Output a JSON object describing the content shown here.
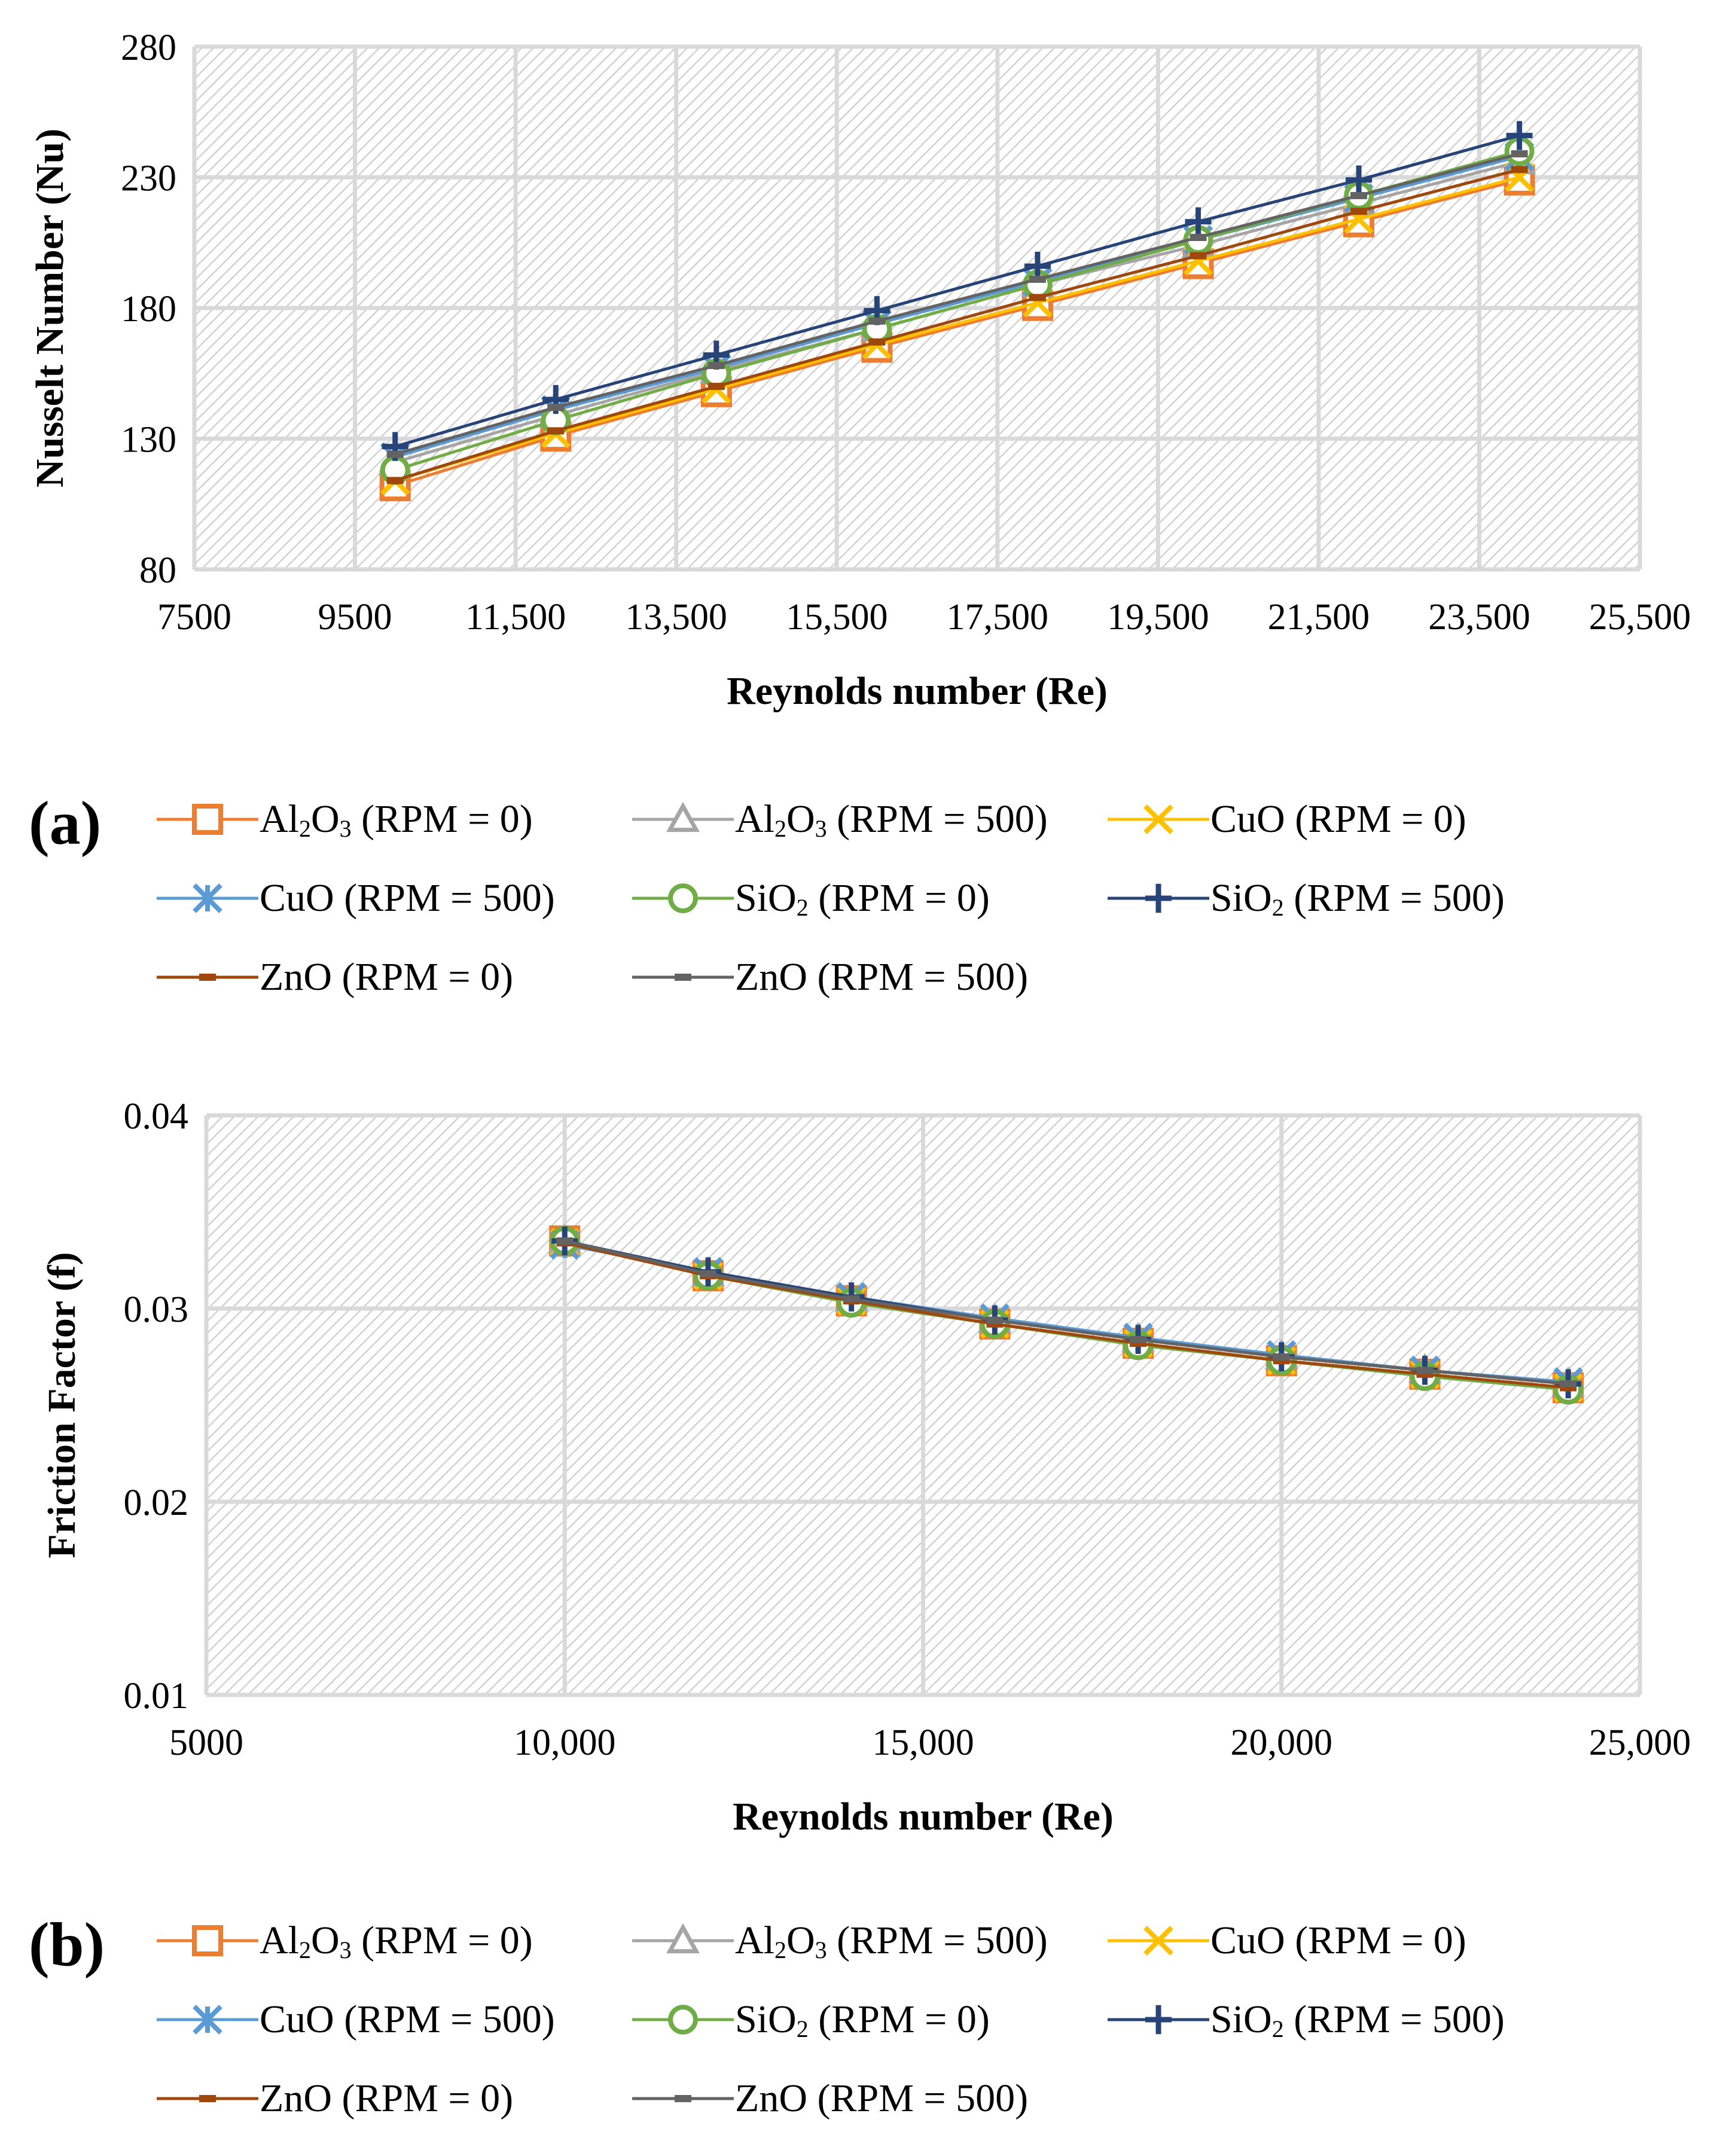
{
  "chart_data": [
    {
      "panel": "(a)",
      "type": "line",
      "xlabel": "Reynolds number (Re)",
      "ylabel": "Nusselt Number (Nu)",
      "xlim": [
        7500,
        25500
      ],
      "ylim": [
        80,
        280
      ],
      "xticks": [
        7500,
        9500,
        11500,
        13500,
        15500,
        17500,
        19500,
        21500,
        23500,
        25500
      ],
      "xtick_labels": [
        "7500",
        "9500",
        "11,500",
        "13,500",
        "15,500",
        "17,500",
        "19,500",
        "21,500",
        "23,500",
        "25,500"
      ],
      "yticks": [
        80,
        130,
        180,
        230,
        280
      ],
      "ytick_labels": [
        "80",
        "130",
        "180",
        "230",
        "280"
      ],
      "grid": true,
      "x": [
        10000,
        12000,
        14000,
        16000,
        18000,
        20000,
        22000,
        24000
      ],
      "series": [
        {
          "name": "Al2O3 (RPM = 0)",
          "marker": "square",
          "color": "#ED7D31",
          "values": [
            112,
            131,
            148,
            165,
            181,
            197,
            213,
            229
          ]
        },
        {
          "name": "Al2O3 (RPM = 500)",
          "marker": "triangle",
          "color": "#A5A5A5",
          "values": [
            121,
            139,
            156,
            172,
            189,
            204,
            220,
            236
          ]
        },
        {
          "name": "CuO (RPM = 0)",
          "marker": "x",
          "color": "#FFC000",
          "values": [
            114,
            132,
            149,
            166,
            182,
            198,
            214,
            230
          ]
        },
        {
          "name": "CuO (RPM = 500)",
          "marker": "star",
          "color": "#5B9BD5",
          "values": [
            123,
            141,
            157,
            174,
            190,
            206,
            222,
            238
          ]
        },
        {
          "name": "SiO2 (RPM = 0)",
          "marker": "circle",
          "color": "#70AD47",
          "values": [
            118,
            137,
            155,
            172,
            189,
            206,
            223,
            240
          ]
        },
        {
          "name": "SiO2 (RPM = 500)",
          "marker": "plus",
          "color": "#264478",
          "values": [
            127,
            145,
            162,
            179,
            196,
            213,
            229,
            246
          ]
        },
        {
          "name": "ZnO (RPM = 0)",
          "marker": "dash",
          "color": "#9E480E",
          "values": [
            114,
            133,
            150,
            167,
            184,
            200,
            217,
            233
          ]
        },
        {
          "name": "ZnO (RPM = 500)",
          "marker": "dash",
          "color": "#636363",
          "values": [
            124,
            142,
            158,
            175,
            191,
            207,
            223,
            239
          ]
        }
      ]
    },
    {
      "panel": "(b)",
      "type": "line",
      "xlabel": "Reynolds number (Re)",
      "ylabel": "Friction Factor (f)",
      "xlim": [
        5000,
        25000
      ],
      "ylim": [
        0.01,
        0.04
      ],
      "xticks": [
        5000,
        10000,
        15000,
        20000,
        25000
      ],
      "xtick_labels": [
        "5000",
        "10,000",
        "15,000",
        "20,000",
        "25,000"
      ],
      "yticks": [
        0.01,
        0.02,
        0.03,
        0.04
      ],
      "ytick_labels": [
        "0.01",
        "0.02",
        "0.03",
        "0.04"
      ],
      "grid": true,
      "x": [
        10000,
        12000,
        14000,
        16000,
        18000,
        20000,
        22000,
        24000
      ],
      "series": [
        {
          "name": "Al2O3 (RPM = 0)",
          "marker": "square",
          "color": "#ED7D31",
          "values": [
            0.0335,
            0.0317,
            0.0304,
            0.0292,
            0.0282,
            0.0273,
            0.0266,
            0.0259
          ]
        },
        {
          "name": "Al2O3 (RPM = 500)",
          "marker": "triangle",
          "color": "#A5A5A5",
          "values": [
            0.0335,
            0.0318,
            0.0305,
            0.0294,
            0.0284,
            0.0275,
            0.0268,
            0.0261
          ]
        },
        {
          "name": "CuO (RPM = 0)",
          "marker": "x",
          "color": "#FFC000",
          "values": [
            0.0334,
            0.0317,
            0.0304,
            0.0292,
            0.0282,
            0.0273,
            0.0266,
            0.0259
          ]
        },
        {
          "name": "CuO (RPM = 500)",
          "marker": "star",
          "color": "#5B9BD5",
          "values": [
            0.0333,
            0.0319,
            0.0306,
            0.0295,
            0.0285,
            0.0276,
            0.0268,
            0.0262
          ]
        },
        {
          "name": "SiO2 (RPM = 0)",
          "marker": "circle",
          "color": "#70AD47",
          "values": [
            0.0335,
            0.0317,
            0.0303,
            0.0292,
            0.0281,
            0.0273,
            0.0265,
            0.0258
          ]
        },
        {
          "name": "SiO2 (RPM = 500)",
          "marker": "plus",
          "color": "#264478",
          "values": [
            0.0335,
            0.0319,
            0.0306,
            0.0294,
            0.0284,
            0.0275,
            0.0268,
            0.0261
          ]
        },
        {
          "name": "ZnO (RPM = 0)",
          "marker": "dash",
          "color": "#9E480E",
          "values": [
            0.0334,
            0.0317,
            0.0304,
            0.0292,
            0.0282,
            0.0273,
            0.0266,
            0.0259
          ]
        },
        {
          "name": "ZnO (RPM = 500)",
          "marker": "dash",
          "color": "#636363",
          "values": [
            0.0335,
            0.0318,
            0.0305,
            0.0294,
            0.0284,
            0.0275,
            0.0268,
            0.0261
          ]
        }
      ]
    }
  ],
  "legends": [
    {
      "panel_label": "(a)",
      "items": [
        {
          "chem": "Al",
          "sub1": "2",
          "chem2": "O",
          "sub2": "3",
          "rest": " (RPM = 0)"
        },
        {
          "chem": "Al",
          "sub1": "2",
          "chem2": "O",
          "sub2": "3",
          "rest": " (RPM = 500)"
        },
        {
          "chem": "CuO",
          "sub1": "",
          "chem2": "",
          "sub2": "",
          "rest": " (RPM = 0)"
        },
        {
          "chem": "CuO",
          "sub1": "",
          "chem2": "",
          "sub2": "",
          "rest": " (RPM = 500)"
        },
        {
          "chem": "SiO",
          "sub1": "2",
          "chem2": "",
          "sub2": "",
          "rest": " (RPM = 0)"
        },
        {
          "chem": "SiO",
          "sub1": "2",
          "chem2": "",
          "sub2": "",
          "rest": " (RPM = 500)"
        },
        {
          "chem": "ZnO",
          "sub1": "",
          "chem2": "",
          "sub2": "",
          "rest": " (RPM = 0)"
        },
        {
          "chem": "ZnO",
          "sub1": "",
          "chem2": "",
          "sub2": "",
          "rest": " (RPM = 500)"
        }
      ]
    },
    {
      "panel_label": "(b)",
      "items": [
        {
          "chem": "Al",
          "sub1": "2",
          "chem2": "O",
          "sub2": "3",
          "rest": " (RPM = 0)"
        },
        {
          "chem": "Al",
          "sub1": "2",
          "chem2": "O",
          "sub2": "3",
          "rest": " (RPM = 500)"
        },
        {
          "chem": "CuO",
          "sub1": "",
          "chem2": "",
          "sub2": "",
          "rest": " (RPM = 0)"
        },
        {
          "chem": "CuO",
          "sub1": "",
          "chem2": "",
          "sub2": "",
          "rest": " (RPM = 500)"
        },
        {
          "chem": "SiO",
          "sub1": "2",
          "chem2": "",
          "sub2": "",
          "rest": " (RPM = 0)"
        },
        {
          "chem": "SiO",
          "sub1": "2",
          "chem2": "",
          "sub2": "",
          "rest": " (RPM = 500)"
        },
        {
          "chem": "ZnO",
          "sub1": "",
          "chem2": "",
          "sub2": "",
          "rest": " (RPM = 0)"
        },
        {
          "chem": "ZnO",
          "sub1": "",
          "chem2": "",
          "sub2": "",
          "rest": " (RPM = 500)"
        }
      ]
    }
  ]
}
